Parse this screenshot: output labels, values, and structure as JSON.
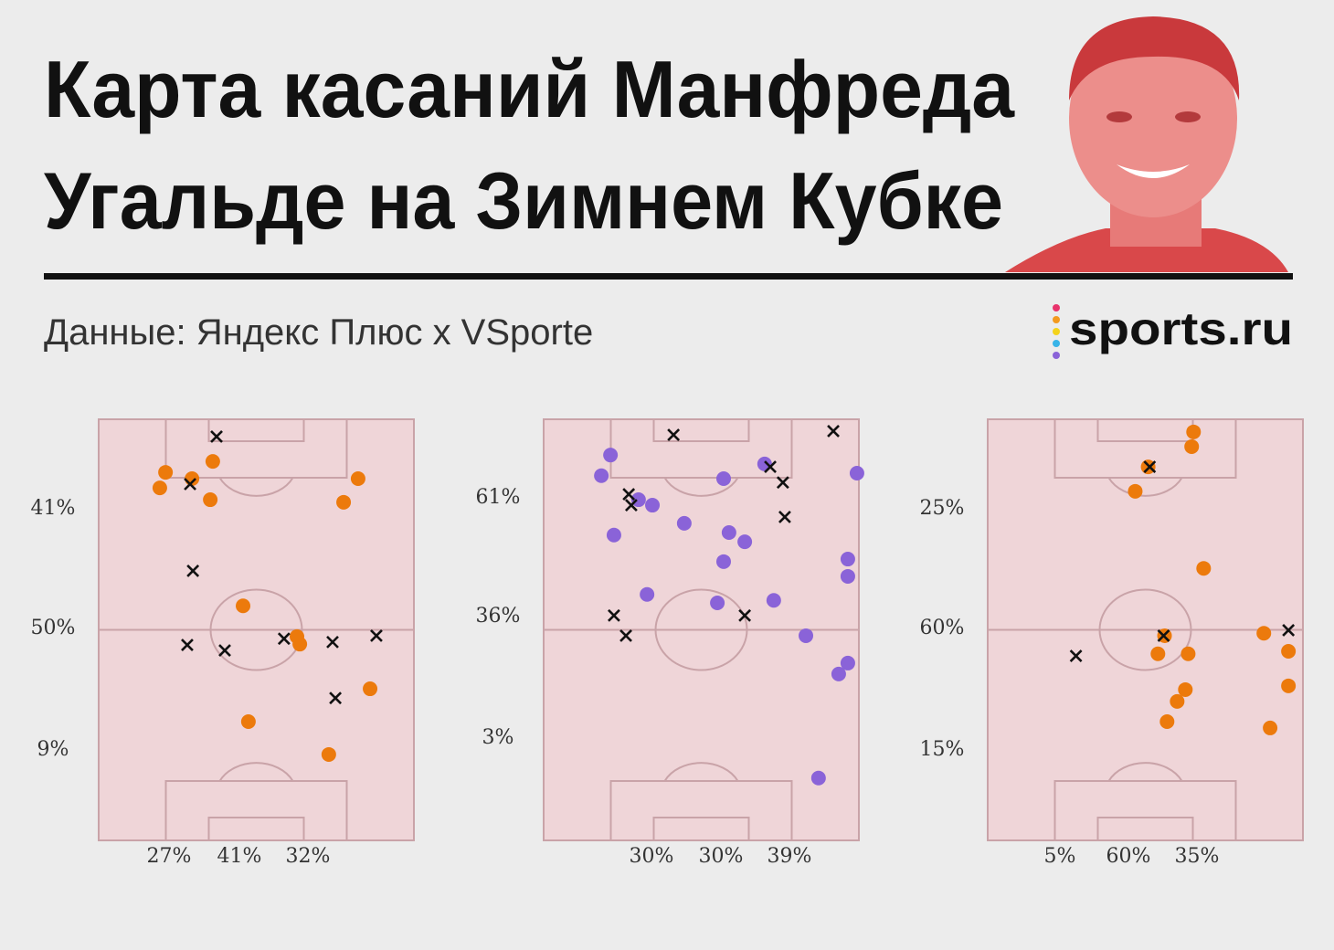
{
  "header": {
    "title_lines": [
      "Карта касаний Манфреда",
      "Угальде на Зимнем Кубке"
    ],
    "source": "Данные: Яндекс Плюс x VSporte",
    "logo": "sports.ru"
  },
  "chart_data": [
    {
      "type": "scatter",
      "xlim": [
        0,
        100
      ],
      "ylim": [
        0,
        100
      ],
      "row_labels": [
        {
          "value": 41,
          "label": "41%"
        },
        {
          "value": 50,
          "label": "50%"
        },
        {
          "value": 9,
          "label": "9%"
        }
      ],
      "column_labels": [
        {
          "value": 27,
          "label": "27%"
        },
        {
          "value": 41,
          "label": "41%"
        },
        {
          "value": 32,
          "label": "32%"
        }
      ],
      "series": [
        {
          "marker": "circle",
          "color": "#ec7a0c",
          "x": [
            21.2,
            19.4,
            29.6,
            36.2,
            35.4,
            82.3,
            77.7,
            45.8,
            62.9,
            63.8,
            86.1,
            47.5,
            73.0
          ],
          "y": [
            87.4,
            83.7,
            85.9,
            90.0,
            80.9,
            85.9,
            80.3,
            55.7,
            48.4,
            46.6,
            36.0,
            28.2,
            20.4
          ]
        },
        {
          "marker": "cross",
          "color": "#111111",
          "x": [
            37.4,
            29.0,
            29.9,
            28.1,
            40.0,
            58.8,
            74.2,
            88.1,
            75.1
          ],
          "y": [
            95.9,
            84.6,
            64.0,
            46.4,
            45.1,
            47.9,
            47.1,
            48.6,
            33.8
          ]
        }
      ]
    },
    {
      "type": "scatter",
      "xlim": [
        0,
        100
      ],
      "ylim": [
        0,
        100
      ],
      "row_labels": [
        {
          "value": 61,
          "label": "61%"
        },
        {
          "value": 36,
          "label": "36%"
        },
        {
          "value": 3,
          "label": "3%"
        }
      ],
      "column_labels": [
        {
          "value": 30,
          "label": "30%"
        },
        {
          "value": 30,
          "label": "30%"
        },
        {
          "value": 39,
          "label": "39%"
        }
      ],
      "series": [
        {
          "marker": "circle",
          "color": "#8a63d8",
          "x": [
            21.2,
            18.3,
            30.1,
            34.5,
            22.3,
            44.6,
            57.1,
            58.8,
            63.8,
            57.1,
            70.1,
            99.4,
            96.5,
            96.5,
            32.8,
            55.1,
            73.0,
            83.2,
            96.5,
            93.6,
            87.2
          ],
          "y": [
            91.5,
            86.6,
            80.9,
            79.6,
            72.5,
            75.3,
            85.9,
            73.1,
            70.9,
            66.2,
            89.4,
            87.2,
            66.8,
            62.7,
            58.4,
            56.4,
            57.0,
            48.6,
            42.1,
            39.5,
            14.8
          ]
        },
        {
          "marker": "cross",
          "color": "#111111",
          "x": [
            41.2,
            91.9,
            71.9,
            75.9,
            27.0,
            27.8,
            76.5,
            22.3,
            26.1,
            63.8
          ],
          "y": [
            96.3,
            97.2,
            88.7,
            85.0,
            82.2,
            79.6,
            76.8,
            53.4,
            48.6,
            53.4
          ]
        }
      ]
    },
    {
      "type": "scatter",
      "xlim": [
        0,
        100
      ],
      "ylim": [
        0,
        100
      ],
      "row_labels": [
        {
          "value": 25,
          "label": "25%"
        },
        {
          "value": 60,
          "label": "60%"
        },
        {
          "value": 15,
          "label": "15%"
        }
      ],
      "column_labels": [
        {
          "value": 5,
          "label": "5%"
        },
        {
          "value": 60,
          "label": "60%"
        },
        {
          "value": 35,
          "label": "35%"
        }
      ],
      "series": [
        {
          "marker": "circle",
          "color": "#ec7a0c",
          "x": [
            65.3,
            64.7,
            50.9,
            46.8,
            68.5,
            56.1,
            54.0,
            63.6,
            87.6,
            95.4,
            95.4,
            62.7,
            60.1,
            56.9,
            89.6
          ],
          "y": [
            97.0,
            93.5,
            88.7,
            82.9,
            64.6,
            48.6,
            44.3,
            44.3,
            49.2,
            44.9,
            36.7,
            35.8,
            33.0,
            28.2,
            26.7
          ]
        },
        {
          "marker": "cross",
          "color": "#111111",
          "x": [
            51.4,
            55.8,
            95.4,
            28.0
          ],
          "y": [
            88.7,
            48.6,
            49.9,
            43.8
          ]
        }
      ]
    }
  ]
}
